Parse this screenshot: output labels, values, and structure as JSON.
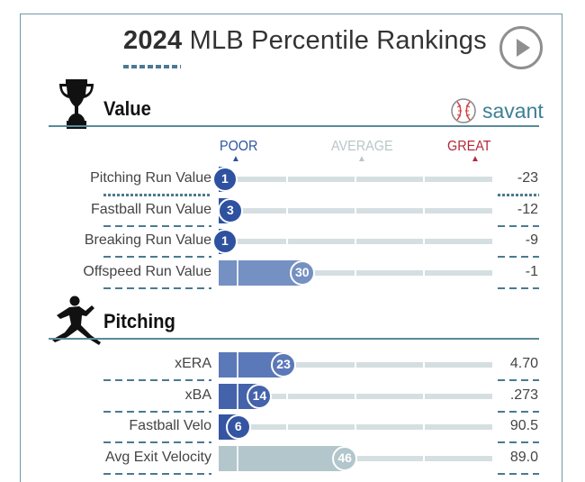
{
  "header": {
    "year": "2024",
    "title": "MLB Percentile Rankings",
    "play_icon": "play-circle-icon"
  },
  "brand": {
    "name": "savant",
    "icon": "baseball-icon"
  },
  "scale": {
    "poor": "POOR",
    "average": "AVERAGE",
    "great": "GREAT"
  },
  "colors": {
    "poor": "#2e52a0",
    "average": "#b9ccd0",
    "great": "#b5283a",
    "accent": "#3c7f95"
  },
  "sections": [
    {
      "title": "Value",
      "icon": "trophy-icon",
      "metrics": [
        {
          "label": "Pitching Run Value",
          "percentile": 1,
          "value": "-23",
          "bar_color": "#2e52a0",
          "dotted": true
        },
        {
          "label": "Fastball Run Value",
          "percentile": 3,
          "value": "-12",
          "bar_color": "#2e52a0",
          "dotted": false
        },
        {
          "label": "Breaking Run Value",
          "percentile": 1,
          "value": "-9",
          "bar_color": "#2e52a0",
          "dotted": false
        },
        {
          "label": "Offspeed Run Value",
          "percentile": 30,
          "value": "-1",
          "bar_color": "#7590c2",
          "dotted": false
        }
      ]
    },
    {
      "title": "Pitching",
      "icon": "pitcher-icon",
      "metrics": [
        {
          "label": "xERA",
          "percentile": 23,
          "value": "4.70",
          "bar_color": "#5b78b8",
          "dotted": false
        },
        {
          "label": "xBA",
          "percentile": 14,
          "value": ".273",
          "bar_color": "#4563ab",
          "dotted": false
        },
        {
          "label": "Fastball Velo",
          "percentile": 6,
          "value": "90.5",
          "bar_color": "#3555a3",
          "dotted": false
        },
        {
          "label": "Avg Exit Velocity",
          "percentile": 46,
          "value": "89.0",
          "bar_color": "#b2c6cb",
          "dotted": false
        }
      ]
    }
  ]
}
